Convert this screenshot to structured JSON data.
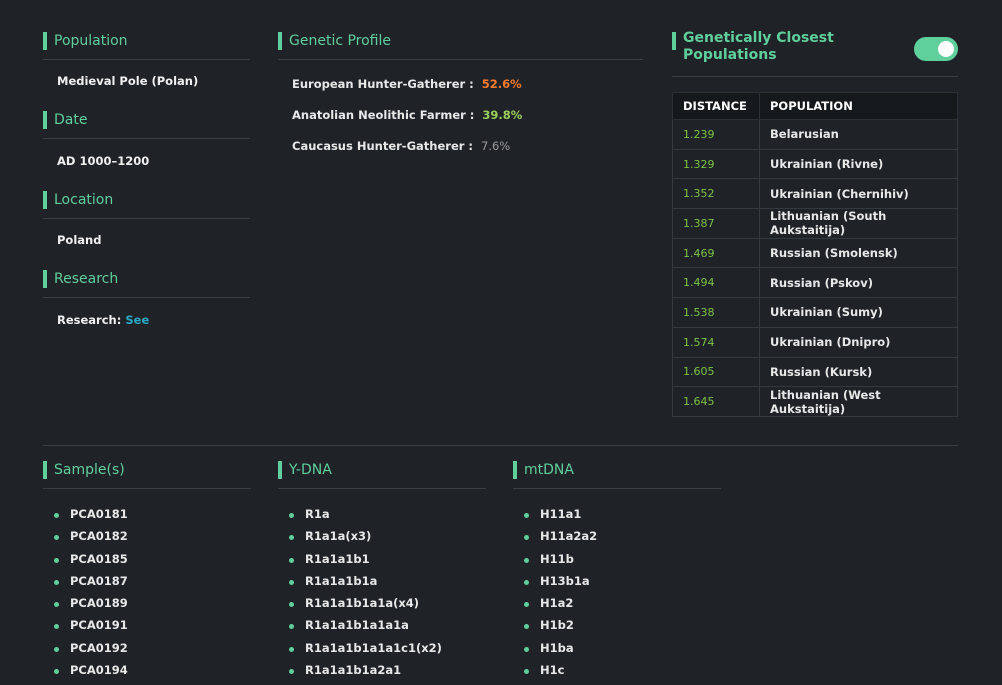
{
  "population": {
    "title": "Population",
    "text": "Medieval Pole (Polan)"
  },
  "date": {
    "title": "Date",
    "text": "AD 1000–1200"
  },
  "location": {
    "title": "Location",
    "text": "Poland"
  },
  "research": {
    "title": "Research",
    "label": "Research:",
    "link": "See"
  },
  "genetic_profile": {
    "title": "Genetic Profile",
    "items": [
      {
        "label": "European Hunter-Gatherer :",
        "value": "52.6%"
      },
      {
        "label": "Anatolian Neolithic Farmer :",
        "value": "39.8%"
      },
      {
        "label": "Caucasus Hunter-Gatherer :",
        "value": "7.6%"
      }
    ]
  },
  "closest": {
    "title": "Genetically Closest Populations",
    "table": {
      "headers": [
        "DISTANCE",
        "POPULATION"
      ],
      "rows": [
        [
          "1.239",
          "Belarusian"
        ],
        [
          "1.329",
          "Ukrainian (Rivne)"
        ],
        [
          "1.352",
          "Ukrainian (Chernihiv)"
        ],
        [
          "1.387",
          "Lithuanian (South Aukstaitija)"
        ],
        [
          "1.469",
          "Russian (Smolensk)"
        ],
        [
          "1.494",
          "Russian (Pskov)"
        ],
        [
          "1.538",
          "Ukrainian (Sumy)"
        ],
        [
          "1.574",
          "Ukrainian (Dnipro)"
        ],
        [
          "1.605",
          "Russian (Kursk)"
        ],
        [
          "1.645",
          "Lithuanian (West Aukstaitija)"
        ]
      ]
    }
  },
  "samples": {
    "title": "Sample(s)",
    "items": [
      "PCA0181",
      "PCA0182",
      "PCA0185",
      "PCA0187",
      "PCA0189",
      "PCA0191",
      "PCA0192",
      "PCA0194"
    ]
  },
  "ydna": {
    "title": "Y-DNA",
    "items": [
      "R1a",
      "R1a1a(x3)",
      "R1a1a1b1",
      "R1a1a1b1a",
      "R1a1a1b1a1a(x4)",
      "R1a1a1b1a1a1a",
      "R1a1a1b1a1a1c1(x2)",
      "R1a1a1b1a2a1"
    ]
  },
  "mtdna": {
    "title": "mtDNA",
    "items": [
      "H11a1",
      "H11a2a2",
      "H11b",
      "H13b1a",
      "H1a2",
      "H1b2",
      "H1ba",
      "H1c"
    ]
  }
}
